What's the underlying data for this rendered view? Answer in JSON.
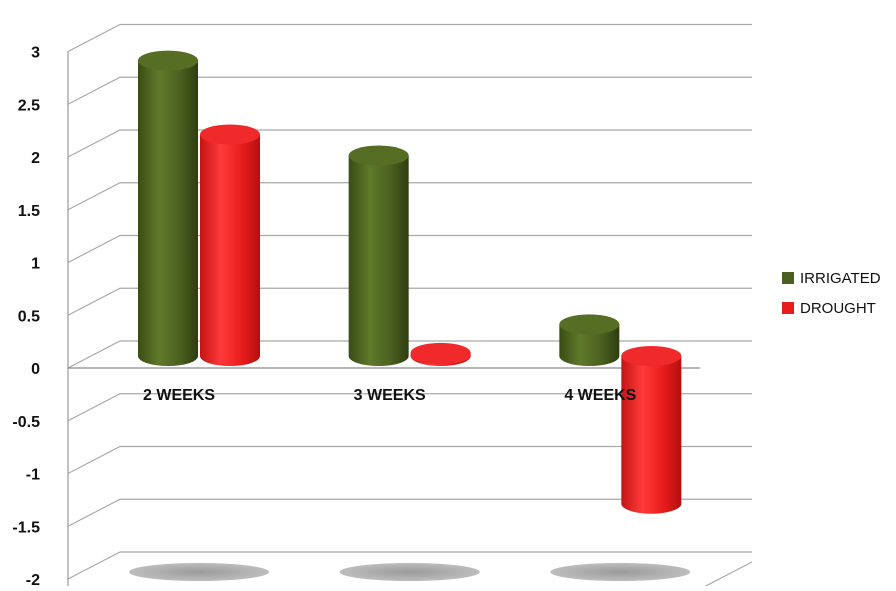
{
  "chart_data": {
    "type": "bar",
    "categories": [
      "2 WEEKS",
      "3 WEEKS",
      "4 WEEKS"
    ],
    "series": [
      {
        "name": "IRRIGATED",
        "color": "#4b6020",
        "values": [
          2.8,
          1.9,
          0.3
        ]
      },
      {
        "name": "DROUGHT",
        "color": "#e81c1c",
        "values": [
          2.1,
          0.03,
          -1.4
        ]
      }
    ],
    "yticks": [
      "3",
      "2.5",
      "2",
      "1.5",
      "1",
      "0.5",
      "0",
      "-0.5",
      "-1",
      "-1.5",
      "-2"
    ],
    "ylim": [
      -2,
      3
    ],
    "grid": true,
    "legend_position": "right",
    "style": "3d-cylinder"
  }
}
